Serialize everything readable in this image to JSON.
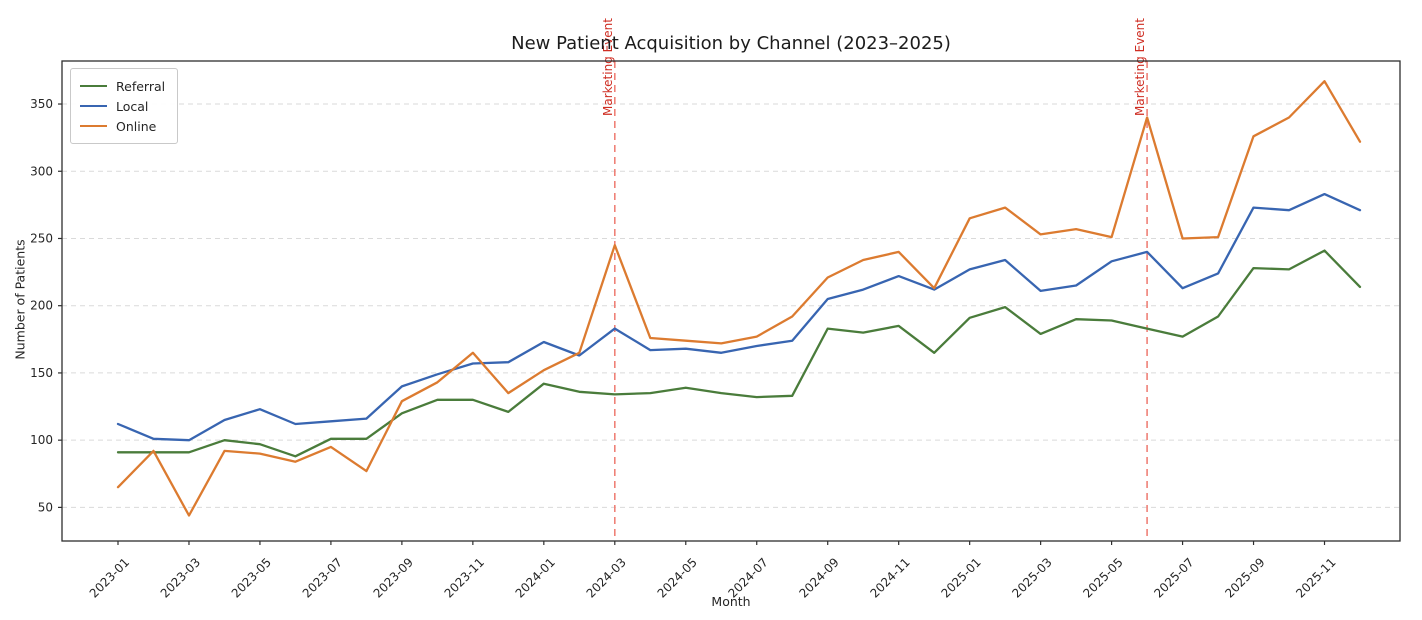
{
  "chart_data": {
    "type": "line",
    "title": "New Patient Acquisition by Channel (2023–2025)",
    "xlabel": "Month",
    "ylabel": "Number of Patients",
    "x": [
      "2023-01",
      "2023-02",
      "2023-03",
      "2023-04",
      "2023-05",
      "2023-06",
      "2023-07",
      "2023-08",
      "2023-09",
      "2023-10",
      "2023-11",
      "2023-12",
      "2024-01",
      "2024-02",
      "2024-03",
      "2024-04",
      "2024-05",
      "2024-06",
      "2024-07",
      "2024-08",
      "2024-09",
      "2024-10",
      "2024-11",
      "2024-12",
      "2025-01",
      "2025-02",
      "2025-03",
      "2025-04",
      "2025-05",
      "2025-06",
      "2025-07",
      "2025-08",
      "2025-09",
      "2025-10",
      "2025-11",
      "2025-12"
    ],
    "series": [
      {
        "name": "Referral",
        "color": "#4a7c3b",
        "values": [
          91,
          91,
          91,
          100,
          97,
          88,
          101,
          101,
          120,
          130,
          130,
          121,
          142,
          136,
          134,
          135,
          139,
          135,
          132,
          133,
          183,
          180,
          185,
          165,
          191,
          199,
          179,
          190,
          189,
          183,
          177,
          192,
          228,
          227,
          241,
          214
        ]
      },
      {
        "name": "Local",
        "color": "#3865b1",
        "values": [
          112,
          101,
          100,
          115,
          123,
          112,
          114,
          116,
          140,
          149,
          157,
          158,
          173,
          163,
          183,
          167,
          168,
          165,
          170,
          174,
          205,
          212,
          222,
          212,
          227,
          234,
          211,
          215,
          233,
          240,
          213,
          224,
          273,
          271,
          283,
          271
        ]
      },
      {
        "name": "Online",
        "color": "#dc7b30",
        "values": [
          65,
          92,
          44,
          92,
          90,
          84,
          95,
          77,
          129,
          143,
          165,
          135,
          152,
          165,
          245,
          176,
          174,
          172,
          177,
          192,
          221,
          234,
          240,
          213,
          265,
          273,
          253,
          257,
          251,
          340,
          250,
          251,
          326,
          340,
          367,
          322
        ]
      }
    ],
    "yticks": [
      50,
      100,
      150,
      200,
      250,
      300,
      350
    ],
    "ylim": [
      25,
      382
    ],
    "xtick_labels": [
      "2023-01",
      "2023-03",
      "2023-05",
      "2023-07",
      "2023-09",
      "2023-11",
      "2024-01",
      "2024-03",
      "2024-05",
      "2024-07",
      "2024-09",
      "2024-11",
      "2025-01",
      "2025-03",
      "2025-05",
      "2025-07",
      "2025-09",
      "2025-11"
    ],
    "xtick_rotation": 45,
    "grid": "horizontal-dashed",
    "legend_position": "upper-left",
    "annotations": [
      {
        "type": "vline",
        "x": "2024-03",
        "label": "Marketing Event"
      },
      {
        "type": "vline",
        "x": "2025-06",
        "label": "Marketing Event"
      }
    ],
    "annotation_colors": {
      "line": "#ef8177",
      "text": "#cf2e23"
    },
    "frame_color": "#2e2e2e",
    "grid_color": "#dadada",
    "tick_text_color": "#262626"
  }
}
